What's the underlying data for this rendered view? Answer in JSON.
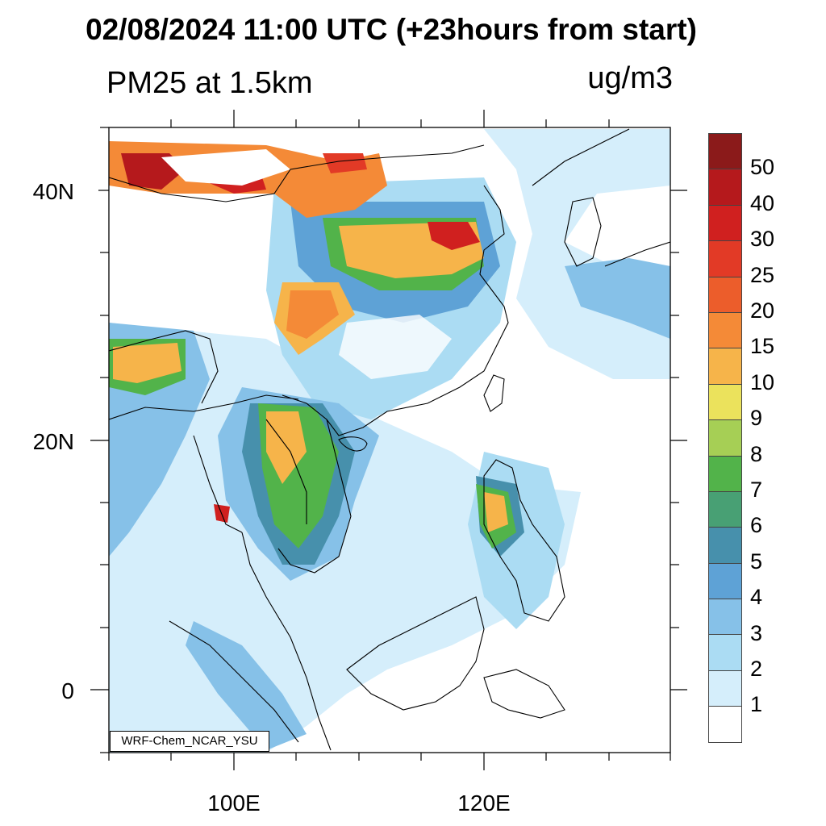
{
  "header": {
    "title": "02/08/2024 11:00 UTC (+23hours from start)",
    "subtitle": "PM25 at 1.5km",
    "units": "ug/m3"
  },
  "map": {
    "lat_labels": [
      "40N",
      "20N",
      "0"
    ],
    "lon_labels": [
      "100E",
      "120E"
    ],
    "credit": "WRF-Chem_NCAR_YSU"
  },
  "legend": {
    "levels": [
      "50",
      "40",
      "30",
      "25",
      "20",
      "15",
      "10",
      "9",
      "8",
      "7",
      "6",
      "5",
      "4",
      "3",
      "2",
      "1"
    ],
    "colors": [
      "#8b1a1a",
      "#b5191c",
      "#d0201f",
      "#e23a26",
      "#ec5d2b",
      "#f48a37",
      "#f6b44a",
      "#ebe25c",
      "#a6cf55",
      "#52b34a",
      "#48a074",
      "#4790ac",
      "#5ea2d6",
      "#86c1e8",
      "#abdcf3",
      "#d5eefb",
      "#ffffff"
    ]
  }
}
